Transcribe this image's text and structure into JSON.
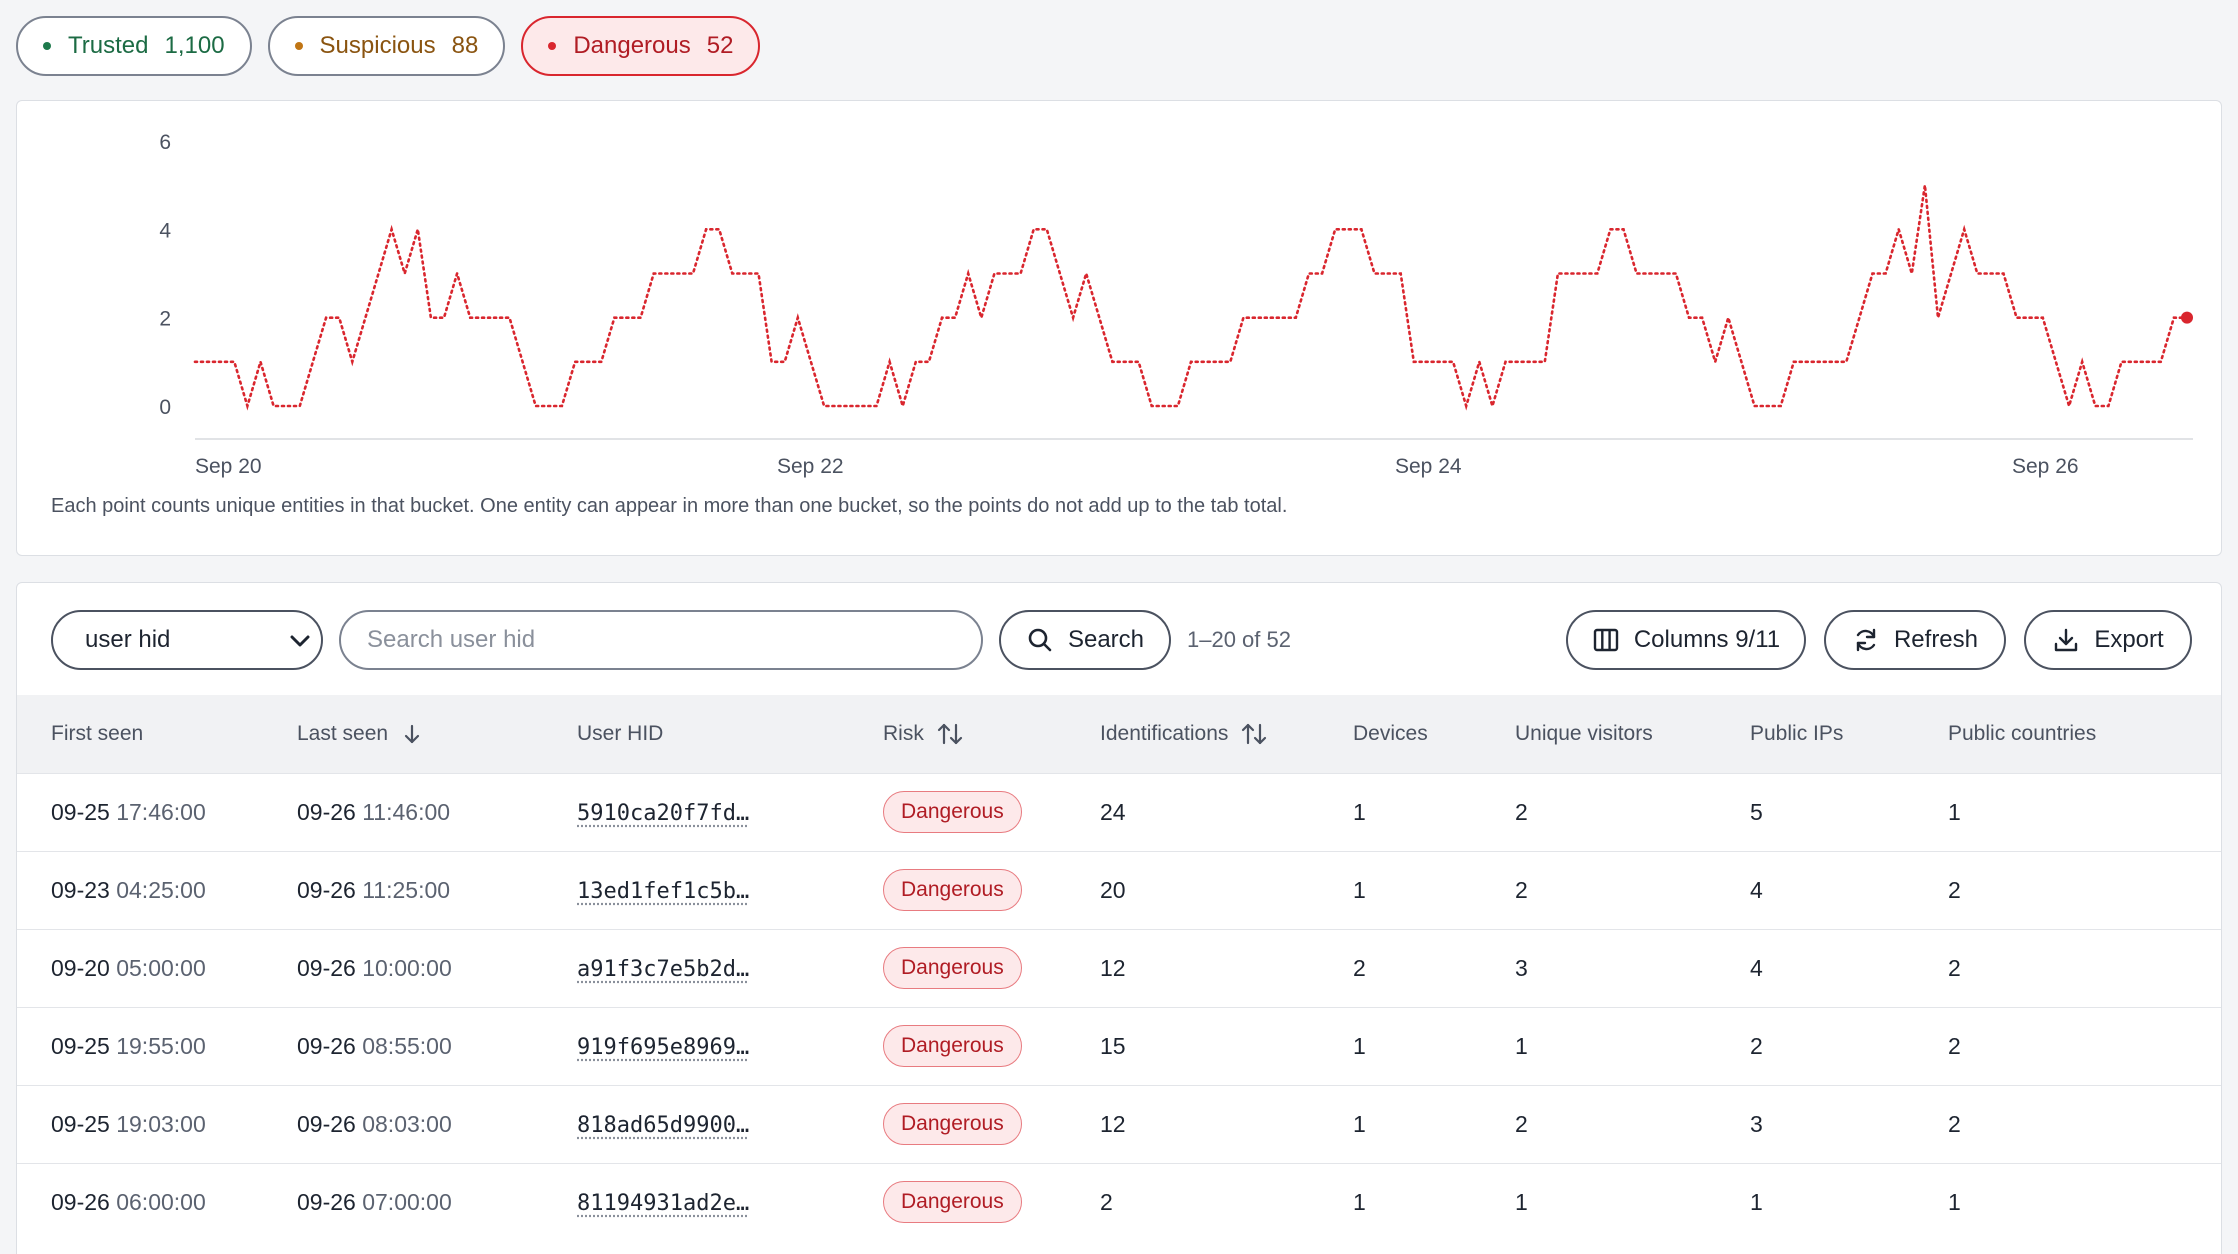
{
  "tabs": [
    {
      "label": "Trusted",
      "count": "1,100"
    },
    {
      "label": "Suspicious",
      "count": "88"
    },
    {
      "label": "Dangerous",
      "count": "52"
    }
  ],
  "colors": {
    "trusted": "#1e7a4c",
    "suspicious": "#c07514",
    "dangerous": "#d9262e"
  },
  "chart_data": {
    "type": "line",
    "series_color": "#d9262e",
    "line_style": "dotted",
    "ylim": [
      0,
      6
    ],
    "yticks": [
      "0",
      "2",
      "4",
      "6"
    ],
    "xticks": [
      "Sep 20",
      "Sep 22",
      "Sep 24",
      "Sep 26"
    ],
    "values": [
      1,
      1,
      1,
      1,
      0,
      1,
      0,
      0,
      0,
      1,
      2,
      2,
      1,
      2,
      3,
      4,
      3,
      4,
      2,
      2,
      3,
      2,
      2,
      2,
      2,
      1,
      0,
      0,
      0,
      1,
      1,
      1,
      2,
      2,
      2,
      3,
      3,
      3,
      3,
      4,
      4,
      3,
      3,
      3,
      1,
      1,
      2,
      1,
      0,
      0,
      0,
      0,
      0,
      1,
      0,
      1,
      1,
      2,
      2,
      3,
      2,
      3,
      3,
      3,
      4,
      4,
      3,
      2,
      3,
      2,
      1,
      1,
      1,
      0,
      0,
      0,
      1,
      1,
      1,
      1,
      2,
      2,
      2,
      2,
      2,
      3,
      3,
      4,
      4,
      4,
      3,
      3,
      3,
      1,
      1,
      1,
      1,
      0,
      1,
      0,
      1,
      1,
      1,
      1,
      3,
      3,
      3,
      3,
      4,
      4,
      3,
      3,
      3,
      3,
      2,
      2,
      1,
      2,
      1,
      0,
      0,
      0,
      1,
      1,
      1,
      1,
      1,
      2,
      3,
      3,
      4,
      3,
      5,
      2,
      3,
      4,
      3,
      3,
      3,
      2,
      2,
      2,
      1,
      0,
      1,
      0,
      0,
      1,
      1,
      1,
      1,
      2,
      2
    ],
    "grid": false
  },
  "chart_note": "Each point counts unique entities in that bucket. One entity can appear in more than one bucket, so the points do not add up to the tab total.",
  "toolbar": {
    "select_value": "user hid",
    "search_placeholder": "Search user hid",
    "search_label": "Search",
    "range_text": "1–20 of 52",
    "columns_label": "Columns 9/11",
    "refresh_label": "Refresh",
    "export_label": "Export"
  },
  "table": {
    "headers": {
      "first_seen": "First seen",
      "last_seen": "Last seen",
      "user_hid": "User HID",
      "risk": "Risk",
      "identifications": "Identifications",
      "devices": "Devices",
      "unique_visitors": "Unique visitors",
      "public_ips": "Public IPs",
      "public_countries": "Public countries"
    },
    "rows": [
      {
        "first_date": "09-25",
        "first_time": "17:46:00",
        "last_date": "09-26",
        "last_time": "11:46:00",
        "hid": "5910ca20f7fd…",
        "risk": "Dangerous",
        "identifications": "24",
        "devices": "1",
        "unique_visitors": "2",
        "public_ips": "5",
        "public_countries": "1"
      },
      {
        "first_date": "09-23",
        "first_time": "04:25:00",
        "last_date": "09-26",
        "last_time": "11:25:00",
        "hid": "13ed1fef1c5b…",
        "risk": "Dangerous",
        "identifications": "20",
        "devices": "1",
        "unique_visitors": "2",
        "public_ips": "4",
        "public_countries": "2"
      },
      {
        "first_date": "09-20",
        "first_time": "05:00:00",
        "last_date": "09-26",
        "last_time": "10:00:00",
        "hid": "a91f3c7e5b2d…",
        "risk": "Dangerous",
        "identifications": "12",
        "devices": "2",
        "unique_visitors": "3",
        "public_ips": "4",
        "public_countries": "2"
      },
      {
        "first_date": "09-25",
        "first_time": "19:55:00",
        "last_date": "09-26",
        "last_time": "08:55:00",
        "hid": "919f695e8969…",
        "risk": "Dangerous",
        "identifications": "15",
        "devices": "1",
        "unique_visitors": "1",
        "public_ips": "2",
        "public_countries": "2"
      },
      {
        "first_date": "09-25",
        "first_time": "19:03:00",
        "last_date": "09-26",
        "last_time": "08:03:00",
        "hid": "818ad65d9900…",
        "risk": "Dangerous",
        "identifications": "12",
        "devices": "1",
        "unique_visitors": "2",
        "public_ips": "3",
        "public_countries": "2"
      },
      {
        "first_date": "09-26",
        "first_time": "06:00:00",
        "last_date": "09-26",
        "last_time": "07:00:00",
        "hid": "81194931ad2e…",
        "risk": "Dangerous",
        "identifications": "2",
        "devices": "1",
        "unique_visitors": "1",
        "public_ips": "1",
        "public_countries": "1"
      }
    ]
  }
}
